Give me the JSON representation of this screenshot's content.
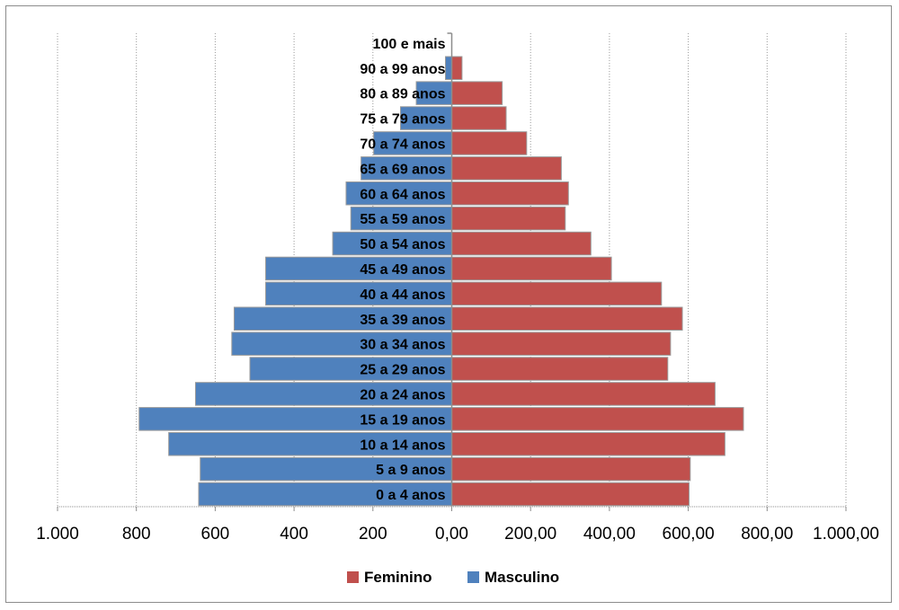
{
  "chart_data": {
    "type": "bar",
    "orientation": "horizontal",
    "categories": [
      "0 a 4 anos",
      "5 a 9 anos",
      "10 a 14 anos",
      "15 a 19 anos",
      "20 a 24 anos",
      "25 a 29 anos",
      "30 a 34 anos",
      "35 a 39 anos",
      "40 a 44 anos",
      "45 a 49 anos",
      "50 a 54 anos",
      "55 a 59 anos",
      "60 a 64 anos",
      "65 a 69 anos",
      "70 a 74 anos",
      "75 a 79 anos",
      "80 a 89 anos",
      "90 a 99 anos",
      "100 e mais"
    ],
    "series": [
      {
        "name": "Masculino",
        "color": "#4f81bd",
        "values": [
          642,
          638,
          718,
          793,
          650,
          512,
          558,
          552,
          472,
          472,
          302,
          256,
          268,
          230,
          198,
          130,
          90,
          16,
          0
        ]
      },
      {
        "name": "Feminino",
        "color": "#c0504d",
        "values": [
          602,
          605,
          693,
          740,
          668,
          548,
          555,
          585,
          532,
          405,
          353,
          288,
          296,
          278,
          190,
          138,
          128,
          26,
          0
        ]
      }
    ],
    "xlim": [
      -1000,
      1000
    ],
    "x_tick_labels": [
      "1.000",
      "800",
      "600",
      "400",
      "200",
      "0,00",
      "200,00",
      "400,00",
      "600,00",
      "800,00",
      "1.000,00"
    ],
    "legend_placement": "bottom",
    "legend": [
      "Feminino",
      "Masculino"
    ],
    "grid": "vertical dotted"
  }
}
